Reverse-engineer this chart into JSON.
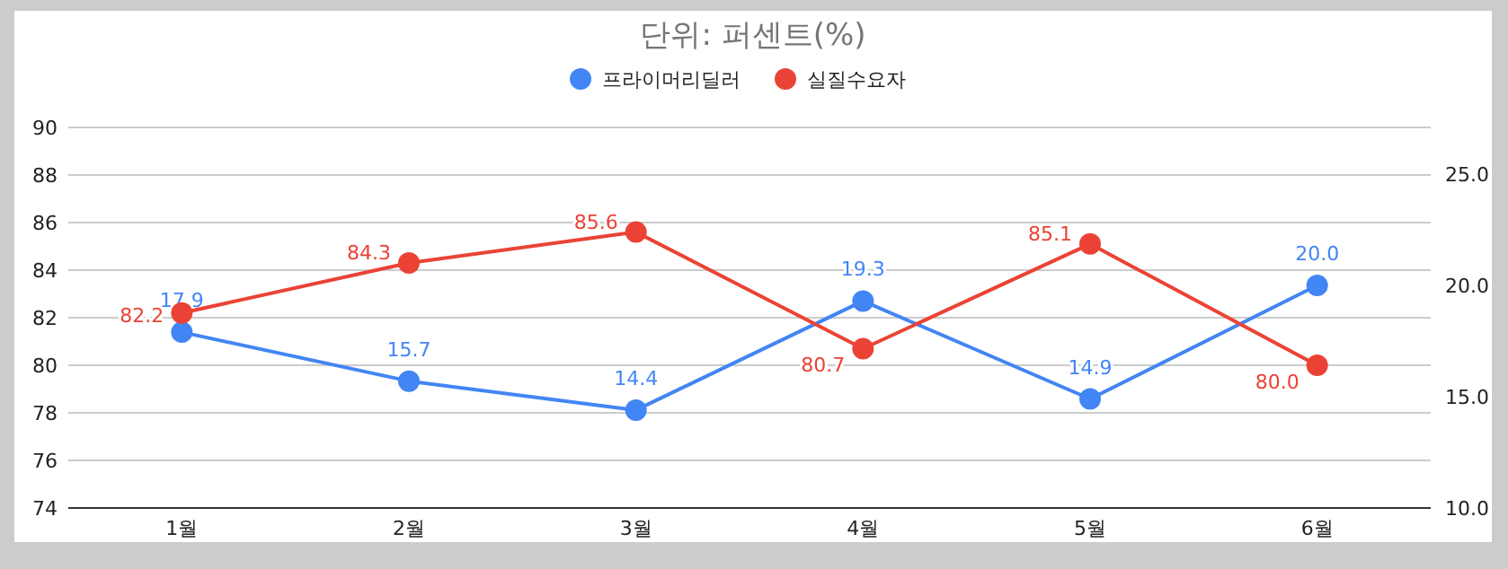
{
  "chart_data": {
    "type": "line",
    "title": "단위: 퍼센트(%)",
    "categories": [
      "1월",
      "2월",
      "3월",
      "4월",
      "5월",
      "6월"
    ],
    "series": [
      {
        "name": "프라이머리딜러",
        "color": "#4285f4",
        "axis": "y2",
        "values": [
          17.9,
          15.7,
          14.4,
          19.3,
          14.9,
          20.0
        ],
        "value_labels": [
          "17.9",
          "15.7",
          "14.4",
          "19.3",
          "14.9",
          "20.0"
        ]
      },
      {
        "name": "실질수요자",
        "color": "#ea4335",
        "values": [
          82.2,
          84.3,
          85.6,
          80.7,
          85.1,
          80.0
        ],
        "value_labels": [
          "82.2",
          "84.3",
          "85.6",
          "80.7",
          "85.1",
          "80.0"
        ]
      }
    ],
    "ylim": [
      74,
      90
    ],
    "yticks": [
      74,
      76,
      78,
      80,
      82,
      84,
      86,
      88,
      90
    ],
    "y2lim": [
      10,
      27.1
    ],
    "y2ticks": [
      {
        "value": 10,
        "label": "10.0"
      },
      {
        "value": 15,
        "label": "15.0"
      },
      {
        "value": 20,
        "label": "20.0"
      },
      {
        "value": 25,
        "label": "25.0"
      }
    ],
    "grid": "y",
    "legend": "top",
    "marker": "circle"
  }
}
